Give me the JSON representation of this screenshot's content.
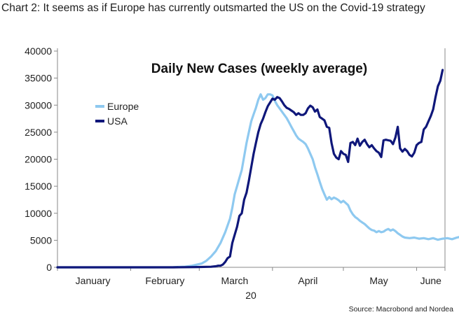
{
  "caption": "Chart 2: It seems as if Europe has currently outsmarted the US on the Covid-19 strategy",
  "source": "Source: Macrobond and Nordea",
  "chart_data": {
    "type": "line",
    "title": "Daily New Cases (weekly average)",
    "xlabel": "",
    "ylabel": "",
    "year_label": "20",
    "ylim": [
      0,
      40000
    ],
    "yticks": [
      "0",
      "5000",
      "10000",
      "15000",
      "20000",
      "25000",
      "30000",
      "35000",
      "40000"
    ],
    "month_labels": [
      "January",
      "February",
      "March",
      "April",
      "May",
      "June"
    ],
    "grid": false,
    "legend_position": "upper-left",
    "x_unit": "day of 2020 (Jan 1 = 1)",
    "series": [
      {
        "name": "Europe",
        "color": "#8ec9f0",
        "points": [
          [
            1,
            0
          ],
          [
            20,
            0
          ],
          [
            40,
            0
          ],
          [
            50,
            30
          ],
          [
            55,
            120
          ],
          [
            58,
            300
          ],
          [
            62,
            700
          ],
          [
            64,
            1200
          ],
          [
            66,
            2000
          ],
          [
            68,
            3000
          ],
          [
            70,
            4500
          ],
          [
            72,
            6500
          ],
          [
            74,
            9000
          ],
          [
            75,
            11000
          ],
          [
            76,
            13500
          ],
          [
            77,
            15000
          ],
          [
            78,
            16500
          ],
          [
            79,
            18000
          ],
          [
            80,
            20500
          ],
          [
            81,
            23000
          ],
          [
            82,
            25000
          ],
          [
            83,
            27000
          ],
          [
            84,
            28300
          ],
          [
            85,
            29500
          ],
          [
            86,
            31000
          ],
          [
            87,
            32000
          ],
          [
            88,
            31000
          ],
          [
            89,
            31300
          ],
          [
            90,
            32000
          ],
          [
            91,
            32000
          ],
          [
            92,
            31800
          ],
          [
            93,
            30800
          ],
          [
            94,
            30000
          ],
          [
            95,
            29400
          ],
          [
            96,
            28800
          ],
          [
            97,
            28200
          ],
          [
            98,
            27600
          ],
          [
            99,
            26800
          ],
          [
            100,
            26000
          ],
          [
            101,
            25200
          ],
          [
            102,
            24400
          ],
          [
            103,
            23800
          ],
          [
            104,
            23500
          ],
          [
            105,
            23200
          ],
          [
            106,
            22800
          ],
          [
            107,
            22000
          ],
          [
            108,
            21000
          ],
          [
            109,
            20000
          ],
          [
            110,
            18500
          ],
          [
            111,
            17200
          ],
          [
            112,
            15800
          ],
          [
            113,
            14500
          ],
          [
            114,
            13500
          ],
          [
            115,
            12500
          ],
          [
            116,
            13000
          ],
          [
            117,
            12600
          ],
          [
            118,
            12900
          ],
          [
            119,
            12700
          ],
          [
            120,
            12400
          ],
          [
            121,
            12000
          ],
          [
            122,
            12300
          ],
          [
            123,
            11900
          ],
          [
            124,
            11500
          ],
          [
            125,
            10500
          ],
          [
            126,
            9800
          ],
          [
            127,
            9300
          ],
          [
            128,
            9000
          ],
          [
            129,
            8600
          ],
          [
            130,
            8300
          ],
          [
            131,
            8000
          ],
          [
            132,
            7600
          ],
          [
            133,
            7200
          ],
          [
            134,
            6900
          ],
          [
            135,
            6800
          ],
          [
            136,
            6500
          ],
          [
            137,
            6700
          ],
          [
            138,
            6500
          ],
          [
            139,
            6600
          ],
          [
            140,
            6900
          ],
          [
            141,
            7100
          ],
          [
            142,
            6800
          ],
          [
            143,
            7000
          ],
          [
            144,
            6700
          ],
          [
            145,
            6300
          ],
          [
            146,
            6000
          ],
          [
            147,
            5700
          ],
          [
            148,
            5500
          ],
          [
            150,
            5400
          ],
          [
            152,
            5500
          ],
          [
            154,
            5300
          ],
          [
            156,
            5400
          ],
          [
            158,
            5200
          ],
          [
            160,
            5400
          ],
          [
            162,
            5100
          ],
          [
            164,
            5300
          ],
          [
            166,
            5400
          ],
          [
            168,
            5200
          ],
          [
            170,
            5500
          ],
          [
            172,
            5700
          ],
          [
            174,
            5500
          ]
        ]
      },
      {
        "name": "USA",
        "color": "#0f177a",
        "points": [
          [
            1,
            0
          ],
          [
            30,
            0
          ],
          [
            50,
            0
          ],
          [
            60,
            50
          ],
          [
            66,
            100
          ],
          [
            68,
            200
          ],
          [
            69,
            300
          ],
          [
            70,
            300
          ],
          [
            71,
            500
          ],
          [
            72,
            1000
          ],
          [
            73,
            1700
          ],
          [
            74,
            2000
          ],
          [
            75,
            4500
          ],
          [
            76,
            6000
          ],
          [
            77,
            7500
          ],
          [
            78,
            9500
          ],
          [
            79,
            10000
          ],
          [
            80,
            12500
          ],
          [
            81,
            13800
          ],
          [
            82,
            16000
          ],
          [
            83,
            18500
          ],
          [
            84,
            21000
          ],
          [
            85,
            23000
          ],
          [
            86,
            25000
          ],
          [
            87,
            26500
          ],
          [
            88,
            27500
          ],
          [
            89,
            28700
          ],
          [
            90,
            29800
          ],
          [
            91,
            30500
          ],
          [
            92,
            31200
          ],
          [
            93,
            31000
          ],
          [
            94,
            31500
          ],
          [
            95,
            31300
          ],
          [
            96,
            30700
          ],
          [
            97,
            30000
          ],
          [
            98,
            29500
          ],
          [
            99,
            29300
          ],
          [
            100,
            29000
          ],
          [
            101,
            28700
          ],
          [
            102,
            28200
          ],
          [
            103,
            28500
          ],
          [
            104,
            28200
          ],
          [
            105,
            28200
          ],
          [
            106,
            28500
          ],
          [
            107,
            29400
          ],
          [
            108,
            29900
          ],
          [
            109,
            29600
          ],
          [
            110,
            28800
          ],
          [
            111,
            29200
          ],
          [
            112,
            27800
          ],
          [
            113,
            27500
          ],
          [
            114,
            27200
          ],
          [
            115,
            26000
          ],
          [
            116,
            25800
          ],
          [
            117,
            23000
          ],
          [
            118,
            21000
          ],
          [
            119,
            20300
          ],
          [
            120,
            20000
          ],
          [
            121,
            21500
          ],
          [
            122,
            21000
          ],
          [
            123,
            20800
          ],
          [
            124,
            19500
          ],
          [
            125,
            23000
          ],
          [
            126,
            23200
          ],
          [
            127,
            22600
          ],
          [
            128,
            23800
          ],
          [
            129,
            22500
          ],
          [
            130,
            23200
          ],
          [
            131,
            23600
          ],
          [
            132,
            22800
          ],
          [
            133,
            22200
          ],
          [
            134,
            22600
          ],
          [
            135,
            22000
          ],
          [
            136,
            21500
          ],
          [
            137,
            21200
          ],
          [
            138,
            20400
          ],
          [
            139,
            23500
          ],
          [
            140,
            23600
          ],
          [
            141,
            23500
          ],
          [
            142,
            23400
          ],
          [
            143,
            22800
          ],
          [
            144,
            24000
          ],
          [
            145,
            26000
          ],
          [
            146,
            22000
          ],
          [
            147,
            21400
          ],
          [
            148,
            21900
          ],
          [
            149,
            21500
          ],
          [
            150,
            20800
          ],
          [
            151,
            20500
          ],
          [
            152,
            21200
          ],
          [
            153,
            22600
          ],
          [
            154,
            23000
          ],
          [
            155,
            23200
          ],
          [
            156,
            25500
          ],
          [
            157,
            26000
          ],
          [
            158,
            27000
          ],
          [
            159,
            28000
          ],
          [
            160,
            29200
          ],
          [
            161,
            31500
          ],
          [
            162,
            33500
          ],
          [
            163,
            34500
          ],
          [
            164,
            36500
          ]
        ]
      }
    ]
  }
}
